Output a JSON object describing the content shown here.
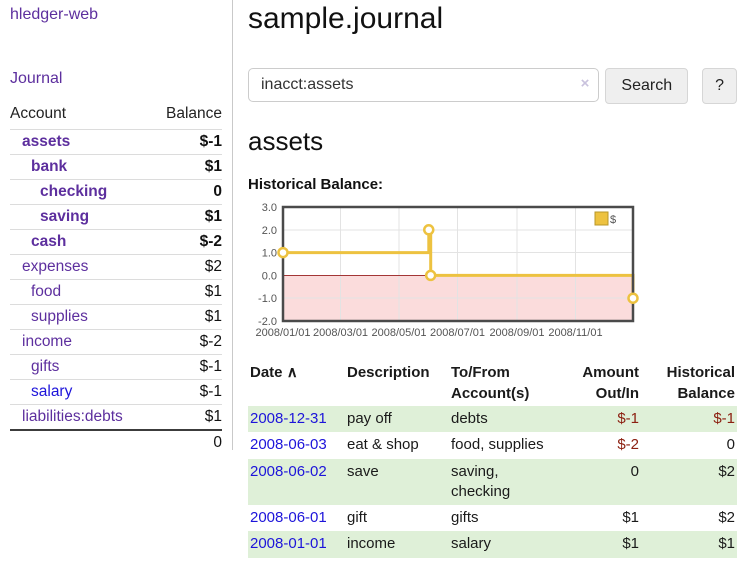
{
  "colors": {
    "link_purple": "#5d2f9e",
    "link_blue": "#1d14da",
    "negative_strong": "#8c1626",
    "negative_soft": "#c67f7f",
    "table_negative": "#8c2011",
    "row_stripe_green": "#dff0d8",
    "chart_line_gold": "#edc240"
  },
  "brand": "hledger-web",
  "nav": {
    "journal": "Journal"
  },
  "sidebar": {
    "header": {
      "account": "Account",
      "balance": "Balance"
    },
    "rows": [
      {
        "name": "assets",
        "depth": 1,
        "bold": true,
        "balance": "$-1",
        "balance_style": "neg-strong"
      },
      {
        "name": "bank",
        "depth": 2,
        "bold": true,
        "balance": "$1",
        "balance_style": "plain"
      },
      {
        "name": "checking",
        "depth": 3,
        "bold": true,
        "balance": "0",
        "balance_style": "plain"
      },
      {
        "name": "saving",
        "depth": 3,
        "bold": true,
        "balance": "$1",
        "balance_style": "plain"
      },
      {
        "name": "cash",
        "depth": 2,
        "bold": true,
        "balance": "$-2",
        "balance_style": "neg-strong"
      },
      {
        "name": "expenses",
        "depth": 1,
        "bold": false,
        "balance": "$2",
        "balance_style": "plain"
      },
      {
        "name": "food",
        "depth": 2,
        "bold": false,
        "balance": "$1",
        "balance_style": "plain"
      },
      {
        "name": "supplies",
        "depth": 2,
        "bold": false,
        "balance": "$1",
        "balance_style": "plain"
      },
      {
        "name": "income",
        "depth": 1,
        "bold": false,
        "balance": "$-2",
        "balance_style": "neg-soft"
      },
      {
        "name": "gifts",
        "depth": 2,
        "bold": false,
        "balance": "$-1",
        "balance_style": "neg-soft"
      },
      {
        "name": "salary",
        "depth": 2,
        "bold": false,
        "link_style": "unvisited",
        "balance": "$-1",
        "balance_style": "neg-soft"
      },
      {
        "name": "liabilities:debts",
        "depth": 1,
        "bold": false,
        "balance": "$1",
        "balance_style": "plain"
      }
    ],
    "total": "0"
  },
  "header": {
    "title": "sample.journal"
  },
  "search": {
    "value": "inacct:assets",
    "clear": "×",
    "button": "Search",
    "help": "?"
  },
  "account_page": {
    "heading": "assets",
    "chart_title": "Historical Balance:"
  },
  "chart_data": {
    "type": "line",
    "step": true,
    "title": "Historical Balance of assets",
    "legend_label": "$",
    "legend_position": "top-right",
    "x_start": "2008-01-01",
    "x_end": "2008-12-31",
    "points": [
      {
        "x": "2008-01-01",
        "y": 1
      },
      {
        "x": "2008-06-01",
        "y": 2
      },
      {
        "x": "2008-06-03",
        "y": 0
      },
      {
        "x": "2008-12-31",
        "y": -1
      }
    ],
    "ylim": [
      -2,
      3
    ],
    "yticks": [
      3.0,
      2.0,
      1.0,
      0.0,
      -1.0,
      -2.0
    ],
    "xticks": [
      "2008/01/01",
      "2008/03/01",
      "2008/05/01",
      "2008/07/01",
      "2008/09/01",
      "2008/11/01"
    ],
    "grid": true,
    "line_color": "#edc240",
    "marker_fill": "#ffffff",
    "negative_region_color": "#fbdcdc",
    "zero_line_color": "#a33636",
    "grid_color": "#e3e3e3",
    "frame_color": "#4a4a4a"
  },
  "register": {
    "headers": {
      "date": "Date",
      "sort_arrow": "∧",
      "description": "Description",
      "tofrom": [
        "To/From",
        "Account(s)"
      ],
      "amount": [
        "Amount",
        "Out/In"
      ],
      "balance": [
        "Historical",
        "Balance"
      ]
    },
    "rows": [
      {
        "date": "2008-12-31",
        "description": "pay off",
        "accounts": "debts",
        "amount": "$-1",
        "amount_neg": true,
        "balance": "$-1",
        "balance_neg": true
      },
      {
        "date": "2008-06-03",
        "description": "eat & shop",
        "accounts": "food, supplies",
        "amount": "$-2",
        "amount_neg": true,
        "balance": "0",
        "balance_neg": false
      },
      {
        "date": "2008-06-02",
        "description": "save",
        "accounts": "saving, checking",
        "amount": "0",
        "amount_neg": false,
        "balance": "$2",
        "balance_neg": false
      },
      {
        "date": "2008-06-01",
        "description": "gift",
        "accounts": "gifts",
        "amount": "$1",
        "amount_neg": false,
        "balance": "$2",
        "balance_neg": false
      },
      {
        "date": "2008-01-01",
        "description": "income",
        "accounts": "salary",
        "amount": "$1",
        "amount_neg": false,
        "balance": "$1",
        "balance_neg": false
      }
    ]
  }
}
